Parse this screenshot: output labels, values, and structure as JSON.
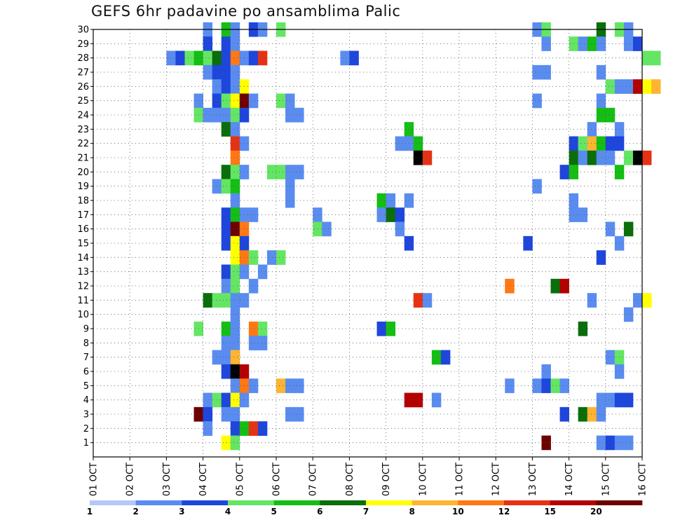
{
  "title": "GEFS 6hr padavine po ansamblima Palic",
  "chart_data": {
    "type": "heatmap",
    "title": "GEFS 6hr padavine po ansamblima Palic",
    "y_tick_labels": [
      "1",
      "2",
      "3",
      "4",
      "5",
      "6",
      "7",
      "8",
      "9",
      "10",
      "11",
      "12",
      "13",
      "14",
      "15",
      "16",
      "17",
      "18",
      "19",
      "20",
      "21",
      "22",
      "23",
      "24",
      "25",
      "26",
      "27",
      "28",
      "29",
      "30"
    ],
    "x_tick_labels": [
      "01 OCT",
      "02 OCT",
      "03 OCT",
      "04 OCT",
      "05 OCT",
      "06 OCT",
      "07 OCT",
      "08 OCT",
      "09 OCT",
      "10 OCT",
      "11 OCT",
      "12 OCT",
      "13 OCT",
      "14 OCT",
      "15 OCT",
      "16 OCT"
    ],
    "x_range_days": [
      0,
      15
    ],
    "y_range_members": [
      0,
      30
    ],
    "grid": "dotted",
    "colorbar": {
      "labels": [
        "1",
        "2",
        "3",
        "4",
        "5",
        "6",
        "7",
        "8",
        "10",
        "12",
        "15",
        "20"
      ],
      "colors": [
        "#b4c8f8",
        "#5a8cf0",
        "#1e46dc",
        "#64e664",
        "#14be14",
        "#0a6e0a",
        "#ffff00",
        "#ffb432",
        "#ff7814",
        "#e63214",
        "#b40000",
        "#6e0000"
      ]
    },
    "cells": [
      [
        3.0,
        30,
        1
      ],
      [
        3.5,
        30,
        4
      ],
      [
        3.75,
        30,
        1
      ],
      [
        4.25,
        30,
        2
      ],
      [
        4.5,
        30,
        1
      ],
      [
        5.0,
        30,
        3
      ],
      [
        12.0,
        30,
        1
      ],
      [
        12.25,
        30,
        3
      ],
      [
        13.75,
        30,
        5
      ],
      [
        14.25,
        30,
        3
      ],
      [
        14.5,
        30,
        1
      ],
      [
        3.0,
        29,
        2
      ],
      [
        3.5,
        29,
        2
      ],
      [
        3.75,
        29,
        1
      ],
      [
        12.25,
        29,
        1
      ],
      [
        13.0,
        29,
        3
      ],
      [
        13.25,
        29,
        1
      ],
      [
        13.5,
        29,
        4
      ],
      [
        13.75,
        29,
        1
      ],
      [
        14.5,
        29,
        1
      ],
      [
        14.75,
        29,
        2
      ],
      [
        2.0,
        28,
        1
      ],
      [
        2.25,
        28,
        2
      ],
      [
        2.5,
        28,
        3
      ],
      [
        2.75,
        28,
        4
      ],
      [
        3.0,
        28,
        3
      ],
      [
        3.25,
        28,
        5
      ],
      [
        3.5,
        28,
        2
      ],
      [
        3.75,
        28,
        8
      ],
      [
        4.0,
        28,
        1
      ],
      [
        4.25,
        28,
        2
      ],
      [
        4.5,
        28,
        9
      ],
      [
        6.75,
        28,
        1
      ],
      [
        7.0,
        28,
        2
      ],
      [
        15.0,
        28,
        3
      ],
      [
        15.25,
        28,
        3
      ],
      [
        3.0,
        27,
        1
      ],
      [
        3.25,
        27,
        2
      ],
      [
        3.5,
        27,
        2
      ],
      [
        3.75,
        27,
        1
      ],
      [
        12.0,
        27,
        1
      ],
      [
        12.25,
        27,
        1
      ],
      [
        13.75,
        27,
        1
      ],
      [
        3.25,
        26,
        1
      ],
      [
        3.5,
        26,
        2
      ],
      [
        3.75,
        26,
        1
      ],
      [
        4.0,
        26,
        6
      ],
      [
        14.0,
        26,
        3
      ],
      [
        14.25,
        26,
        1
      ],
      [
        14.5,
        26,
        1
      ],
      [
        14.75,
        26,
        10
      ],
      [
        15.0,
        26,
        6
      ],
      [
        15.25,
        26,
        7
      ],
      [
        2.75,
        25,
        1
      ],
      [
        3.25,
        25,
        2
      ],
      [
        3.5,
        25,
        3
      ],
      [
        3.75,
        25,
        6
      ],
      [
        4.0,
        25,
        11
      ],
      [
        4.25,
        25,
        1
      ],
      [
        5.0,
        25,
        3
      ],
      [
        5.25,
        25,
        1
      ],
      [
        12.0,
        25,
        1
      ],
      [
        13.75,
        25,
        1
      ],
      [
        2.75,
        24,
        3
      ],
      [
        3.0,
        24,
        1
      ],
      [
        3.25,
        24,
        1
      ],
      [
        3.5,
        24,
        1
      ],
      [
        3.75,
        24,
        3
      ],
      [
        4.0,
        24,
        2
      ],
      [
        5.25,
        24,
        1
      ],
      [
        5.5,
        24,
        1
      ],
      [
        13.75,
        24,
        4
      ],
      [
        14.0,
        24,
        4
      ],
      [
        3.5,
        23,
        5
      ],
      [
        3.75,
        23,
        1
      ],
      [
        8.5,
        23,
        4
      ],
      [
        13.5,
        23,
        1
      ],
      [
        14.25,
        23,
        1
      ],
      [
        3.75,
        22,
        9
      ],
      [
        4.0,
        22,
        1
      ],
      [
        8.25,
        22,
        1
      ],
      [
        8.5,
        22,
        1
      ],
      [
        8.75,
        22,
        4
      ],
      [
        13.0,
        22,
        2
      ],
      [
        13.25,
        22,
        3
      ],
      [
        13.5,
        22,
        7
      ],
      [
        13.75,
        22,
        4
      ],
      [
        14.0,
        22,
        2
      ],
      [
        14.25,
        22,
        2
      ],
      [
        3.75,
        21,
        8
      ],
      [
        8.75,
        21,
        12
      ],
      [
        9.0,
        21,
        9
      ],
      [
        13.0,
        21,
        5
      ],
      [
        13.25,
        21,
        1
      ],
      [
        13.5,
        21,
        5
      ],
      [
        13.75,
        21,
        1
      ],
      [
        14.0,
        21,
        1
      ],
      [
        14.5,
        21,
        3
      ],
      [
        14.75,
        21,
        12
      ],
      [
        15.0,
        21,
        9
      ],
      [
        3.5,
        20,
        5
      ],
      [
        3.75,
        20,
        3
      ],
      [
        4.0,
        20,
        1
      ],
      [
        4.75,
        20,
        3
      ],
      [
        5.0,
        20,
        3
      ],
      [
        5.25,
        20,
        1
      ],
      [
        5.5,
        20,
        1
      ],
      [
        12.75,
        20,
        2
      ],
      [
        13.0,
        20,
        4
      ],
      [
        14.25,
        20,
        4
      ],
      [
        3.25,
        19,
        1
      ],
      [
        3.5,
        19,
        3
      ],
      [
        3.75,
        19,
        4
      ],
      [
        5.25,
        19,
        1
      ],
      [
        12.0,
        19,
        1
      ],
      [
        3.75,
        18,
        1
      ],
      [
        5.25,
        18,
        1
      ],
      [
        7.75,
        18,
        4
      ],
      [
        8.0,
        18,
        1
      ],
      [
        8.5,
        18,
        1
      ],
      [
        13.0,
        18,
        1
      ],
      [
        3.5,
        17,
        2
      ],
      [
        3.75,
        17,
        4
      ],
      [
        4.0,
        17,
        1
      ],
      [
        4.25,
        17,
        1
      ],
      [
        6.0,
        17,
        1
      ],
      [
        7.75,
        17,
        1
      ],
      [
        8.0,
        17,
        5
      ],
      [
        8.25,
        17,
        2
      ],
      [
        13.0,
        17,
        1
      ],
      [
        13.25,
        17,
        1
      ],
      [
        3.5,
        16,
        2
      ],
      [
        3.75,
        16,
        11
      ],
      [
        4.0,
        16,
        8
      ],
      [
        6.0,
        16,
        3
      ],
      [
        6.25,
        16,
        1
      ],
      [
        8.25,
        16,
        1
      ],
      [
        14.0,
        16,
        1
      ],
      [
        14.5,
        16,
        5
      ],
      [
        3.5,
        15,
        2
      ],
      [
        3.75,
        15,
        6
      ],
      [
        4.0,
        15,
        2
      ],
      [
        8.5,
        15,
        2
      ],
      [
        11.75,
        15,
        2
      ],
      [
        14.25,
        15,
        1
      ],
      [
        3.75,
        14,
        6
      ],
      [
        4.0,
        14,
        8
      ],
      [
        4.25,
        14,
        3
      ],
      [
        4.75,
        14,
        1
      ],
      [
        5.0,
        14,
        3
      ],
      [
        13.75,
        14,
        2
      ],
      [
        3.5,
        13,
        2
      ],
      [
        3.75,
        13,
        3
      ],
      [
        4.0,
        13,
        1
      ],
      [
        4.5,
        13,
        1
      ],
      [
        3.5,
        12,
        1
      ],
      [
        3.75,
        12,
        3
      ],
      [
        4.25,
        12,
        1
      ],
      [
        11.25,
        12,
        8
      ],
      [
        12.5,
        12,
        5
      ],
      [
        12.75,
        12,
        10
      ],
      [
        3.0,
        11,
        5
      ],
      [
        3.25,
        11,
        3
      ],
      [
        3.5,
        11,
        3
      ],
      [
        3.75,
        11,
        1
      ],
      [
        4.0,
        11,
        1
      ],
      [
        8.75,
        11,
        9
      ],
      [
        9.0,
        11,
        1
      ],
      [
        13.5,
        11,
        1
      ],
      [
        14.75,
        11,
        1
      ],
      [
        15.0,
        11,
        6
      ],
      [
        3.75,
        10,
        1
      ],
      [
        14.5,
        10,
        1
      ],
      [
        2.75,
        9,
        3
      ],
      [
        3.5,
        9,
        4
      ],
      [
        3.75,
        9,
        1
      ],
      [
        4.25,
        9,
        8
      ],
      [
        4.5,
        9,
        3
      ],
      [
        7.75,
        9,
        2
      ],
      [
        8.0,
        9,
        4
      ],
      [
        13.25,
        9,
        5
      ],
      [
        3.5,
        8,
        1
      ],
      [
        3.75,
        8,
        1
      ],
      [
        4.25,
        8,
        1
      ],
      [
        4.5,
        8,
        1
      ],
      [
        3.25,
        7,
        1
      ],
      [
        3.5,
        7,
        1
      ],
      [
        3.75,
        7,
        7
      ],
      [
        9.25,
        7,
        4
      ],
      [
        9.5,
        7,
        2
      ],
      [
        14.0,
        7,
        1
      ],
      [
        14.25,
        7,
        3
      ],
      [
        3.5,
        6,
        2
      ],
      [
        3.75,
        6,
        12
      ],
      [
        4.0,
        6,
        10
      ],
      [
        12.25,
        6,
        1
      ],
      [
        14.25,
        6,
        1
      ],
      [
        3.75,
        5,
        1
      ],
      [
        4.0,
        5,
        8
      ],
      [
        4.25,
        5,
        1
      ],
      [
        5.0,
        5,
        7
      ],
      [
        5.25,
        5,
        1
      ],
      [
        5.5,
        5,
        1
      ],
      [
        11.25,
        5,
        1
      ],
      [
        12.0,
        5,
        1
      ],
      [
        12.25,
        5,
        2
      ],
      [
        12.5,
        5,
        3
      ],
      [
        12.75,
        5,
        1
      ],
      [
        3.0,
        4,
        1
      ],
      [
        3.25,
        4,
        3
      ],
      [
        3.5,
        4,
        2
      ],
      [
        3.75,
        4,
        6
      ],
      [
        4.0,
        4,
        1
      ],
      [
        8.5,
        4,
        10
      ],
      [
        8.75,
        4,
        10
      ],
      [
        9.25,
        4,
        1
      ],
      [
        13.75,
        4,
        1
      ],
      [
        14.0,
        4,
        1
      ],
      [
        14.25,
        4,
        2
      ],
      [
        14.5,
        4,
        2
      ],
      [
        2.75,
        3,
        11
      ],
      [
        3.0,
        3,
        2
      ],
      [
        3.5,
        3,
        1
      ],
      [
        3.75,
        3,
        1
      ],
      [
        5.25,
        3,
        1
      ],
      [
        5.5,
        3,
        1
      ],
      [
        12.75,
        3,
        2
      ],
      [
        13.25,
        3,
        5
      ],
      [
        13.5,
        3,
        7
      ],
      [
        13.75,
        3,
        1
      ],
      [
        3.0,
        2,
        1
      ],
      [
        3.75,
        2,
        2
      ],
      [
        4.0,
        2,
        4
      ],
      [
        4.25,
        2,
        9
      ],
      [
        4.5,
        2,
        2
      ],
      [
        3.5,
        1,
        6
      ],
      [
        3.75,
        1,
        3
      ],
      [
        12.25,
        1,
        11
      ],
      [
        13.75,
        1,
        1
      ],
      [
        14.0,
        1,
        2
      ],
      [
        14.25,
        1,
        1
      ],
      [
        14.5,
        1,
        1
      ]
    ]
  }
}
